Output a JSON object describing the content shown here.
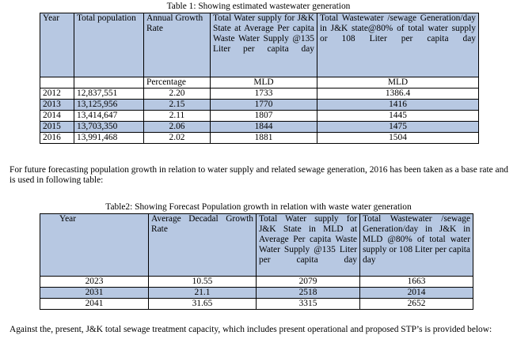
{
  "table1": {
    "caption": "Table 1: Showing estimated wastewater generation",
    "headers": {
      "year": "Year",
      "total_population": "Total population",
      "annual_growth_rate": "Annual Growth Rate",
      "water_supply": "Total Water supply for J&K State at Average Per capita Waste Water Supply @135 Liter per capita day",
      "wastewater": "Total Wastewater /sewage Generation/day in J&K state@80% of total water supply or 108 Liter per capita day"
    },
    "units": {
      "growth": "Percentage",
      "supply": "MLD",
      "wastewater": "MLD"
    },
    "rows": [
      {
        "year": "2012",
        "population": "12,837,551",
        "growth": "2.20",
        "supply": "1733",
        "wastewater": "1386.4"
      },
      {
        "year": "2013",
        "population": "13,125,956",
        "growth": "2.15",
        "supply": "1770",
        "wastewater": "1416"
      },
      {
        "year": "2014",
        "population": "13,414,647",
        "growth": "2.11",
        "supply": "1807",
        "wastewater": "1445"
      },
      {
        "year": "2015",
        "population": "13,703,350",
        "growth": "2.06",
        "supply": "1844",
        "wastewater": "1475"
      },
      {
        "year": "2016",
        "population": "13,991,468",
        "growth": "2.02",
        "supply": "1881",
        "wastewater": "1504"
      }
    ]
  },
  "paragraph1": "For future forecasting population growth in relation to water supply and related sewage generation, 2016 has been taken as a base rate and is used in following table:",
  "table2": {
    "caption": "Table2: Showing Forecast Population growth in relation with waste water generation",
    "headers": {
      "year": "Year",
      "growth_rate": "Average Decadal Growth Rate",
      "water_supply": "Total Water supply for J&K State in MLD at Average Per capita Waste Water Supply @135 Liter per capita day",
      "wastewater": "Total Wastewater /sewage Generation/day in J&K in MLD @80% of total water supply or 108 Liter per capita day"
    },
    "rows": [
      {
        "year": "2023",
        "growth": "10.55",
        "supply": "2079",
        "wastewater": "1663"
      },
      {
        "year": "2031",
        "growth": "21.1",
        "supply": "2518",
        "wastewater": "2014"
      },
      {
        "year": "2041",
        "growth": "31.65",
        "supply": "3315",
        "wastewater": "2652"
      }
    ]
  },
  "paragraph2": "Against the, present, J&K total sewage treatment capacity, which includes present operational and proposed STP’s is provided below:"
}
